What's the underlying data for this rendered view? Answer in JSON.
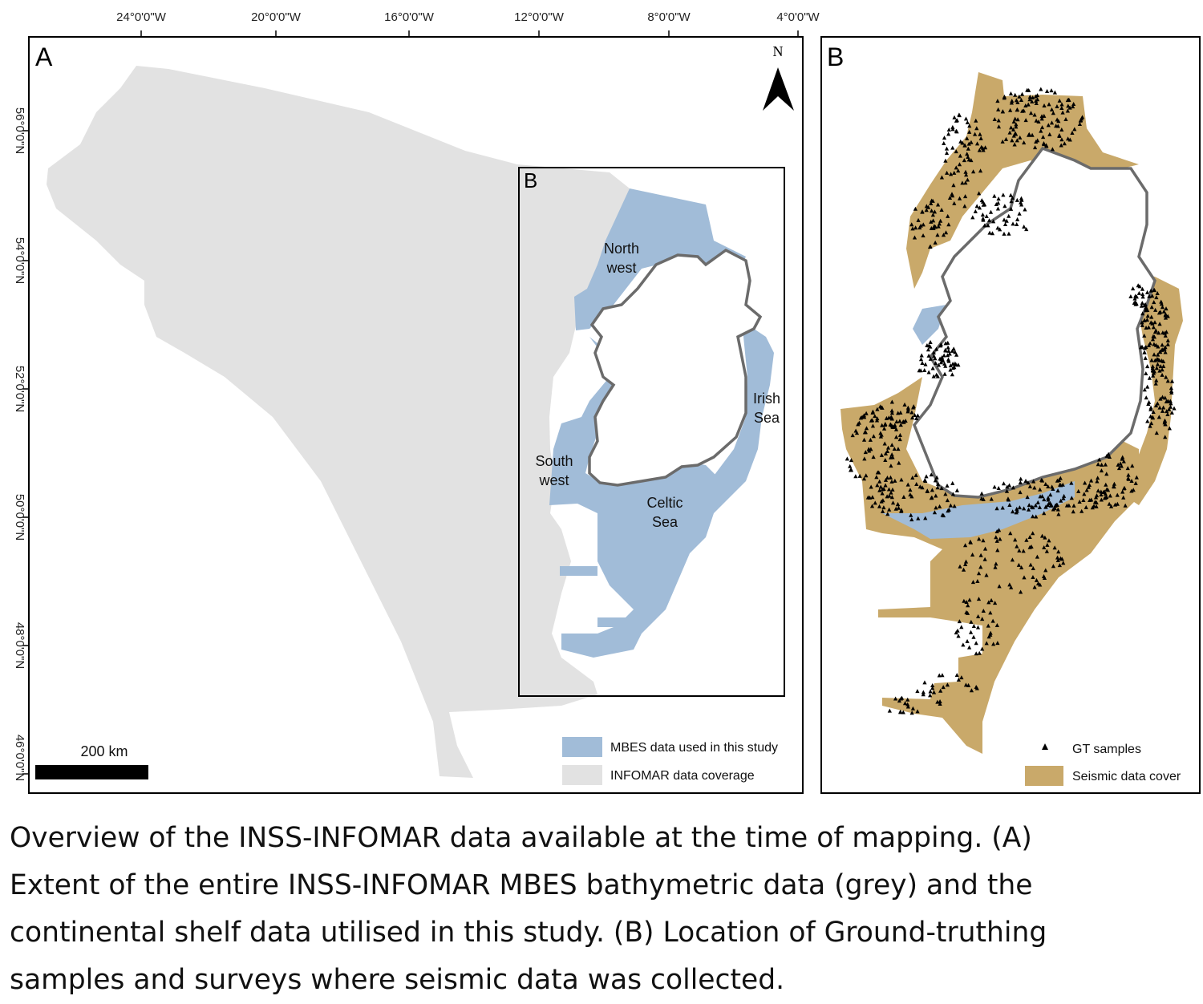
{
  "panel_a": {
    "label": "A",
    "inset_label": "B",
    "north_label": "N",
    "x_ticks": [
      "24°0'0\"W",
      "20°0'0\"W",
      "16°0'0\"W",
      "12°0'0\"W",
      "8°0'0\"W",
      "4°0'0\"W"
    ],
    "y_ticks": [
      "56°0'0\"N",
      "54°0'0\"N",
      "52°0'0\"N",
      "50°0'0\"N",
      "48°0'0\"N",
      "46°0'0\"N"
    ],
    "scale_bar": "200 km",
    "regions": {
      "northwest_1": "North",
      "northwest_2": "west",
      "irish_1": "Irish",
      "irish_2": "Sea",
      "southwest_1": "South",
      "southwest_2": "west",
      "celtic_1": "Celtic",
      "celtic_2": "Sea"
    },
    "legend": [
      {
        "label": "MBES data used in this study",
        "color": "#a1bcd8"
      },
      {
        "label": "INFOMAR data coverage",
        "color": "#e2e2e2"
      }
    ]
  },
  "panel_b": {
    "label": "B",
    "legend": [
      {
        "label": "GT samples",
        "symbol": "triangle-icon"
      },
      {
        "label": "Seismic data cover",
        "color": "#c9a96a"
      }
    ]
  },
  "caption": "Overview of the INSS-INFOMAR data available at the time of mapping. (A)\nExtent of the entire INSS-INFOMAR MBES bathymetric data (grey) and the\ncontinental shelf data utilised in this study. (B) Location of Ground-truthing\nsamples and surveys where seismic data was collected."
}
